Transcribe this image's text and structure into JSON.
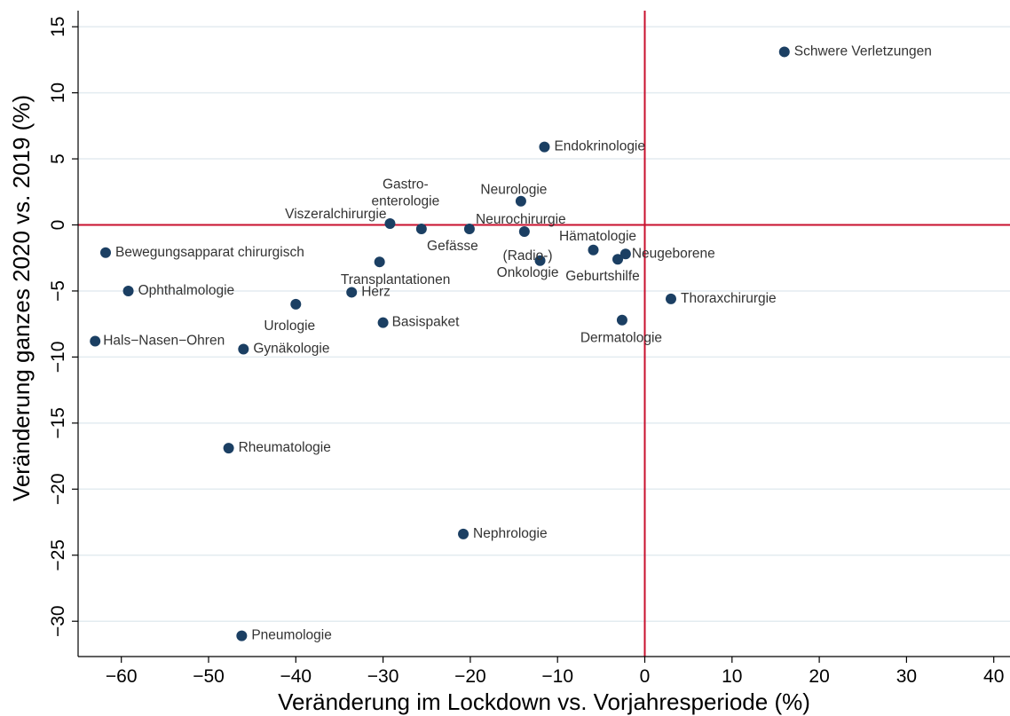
{
  "chart_data": {
    "type": "scatter",
    "xlabel": "Veränderung im Lockdown vs. Vorjahresperiode (%)",
    "ylabel": "Veränderung ganzes 2020 vs. 2019 (%)",
    "xlim": [
      -65,
      42
    ],
    "ylim": [
      -32.5,
      16.5
    ],
    "xticks": [
      -60,
      -50,
      -40,
      -30,
      -20,
      -10,
      0,
      10,
      20,
      30,
      40
    ],
    "yticks": [
      -30,
      -25,
      -20,
      -15,
      -10,
      -5,
      0,
      5,
      10,
      15
    ],
    "grid": "horizontal",
    "reference_lines": {
      "x": 0,
      "y": 0
    },
    "colors": {
      "marker": "#1b3f63",
      "reference": "#c8102e",
      "grid": "#e3ecf0",
      "label": "#333333"
    },
    "points": [
      {
        "label": "Schwere Verletzungen",
        "x": 16,
        "y": 13.1
      },
      {
        "label": "Endokrinologie",
        "x": -11.5,
        "y": 5.9
      },
      {
        "label": "Neurologie",
        "x": -14.2,
        "y": 1.8
      },
      {
        "label": "Gastro-\nenterologie",
        "x": -25.6,
        "y": -0.3
      },
      {
        "label": "Viszeralchirurgie",
        "x": -29.2,
        "y": 0.1
      },
      {
        "label": "Neurochirurgie",
        "x": -13.8,
        "y": -0.5
      },
      {
        "label": "Gefässe",
        "x": -20.1,
        "y": -0.3
      },
      {
        "label": "Hämatologie",
        "x": -5.9,
        "y": -1.9
      },
      {
        "label": "Neugeborene",
        "x": -2.2,
        "y": -2.2
      },
      {
        "label": "Bewegungsapparat chirurgisch",
        "x": -61.8,
        "y": -2.1
      },
      {
        "label": "Transplantationen",
        "x": -30.4,
        "y": -2.8
      },
      {
        "label": "(Radio-)\nOnkologie",
        "x": -12,
        "y": -2.7
      },
      {
        "label": "Geburtshilfe",
        "x": -3.1,
        "y": -2.6
      },
      {
        "label": "Ophthalmologie",
        "x": -59.2,
        "y": -5
      },
      {
        "label": "Herz",
        "x": -33.6,
        "y": -5.1
      },
      {
        "label": "Urologie",
        "x": -40,
        "y": -6
      },
      {
        "label": "Thoraxchirurgie",
        "x": 3,
        "y": -5.6
      },
      {
        "label": "Basispaket",
        "x": -30,
        "y": -7.4
      },
      {
        "label": "Dermatologie",
        "x": -2.6,
        "y": -7.2
      },
      {
        "label": "Hals−Nasen−Ohren",
        "x": -63,
        "y": -8.8
      },
      {
        "label": "Gynäkologie",
        "x": -46,
        "y": -9.4
      },
      {
        "label": "Rheumatologie",
        "x": -47.7,
        "y": -16.9
      },
      {
        "label": "Nephrologie",
        "x": -20.8,
        "y": -23.4
      },
      {
        "label": "Pneumologie",
        "x": -46.2,
        "y": -31.1
      }
    ]
  }
}
